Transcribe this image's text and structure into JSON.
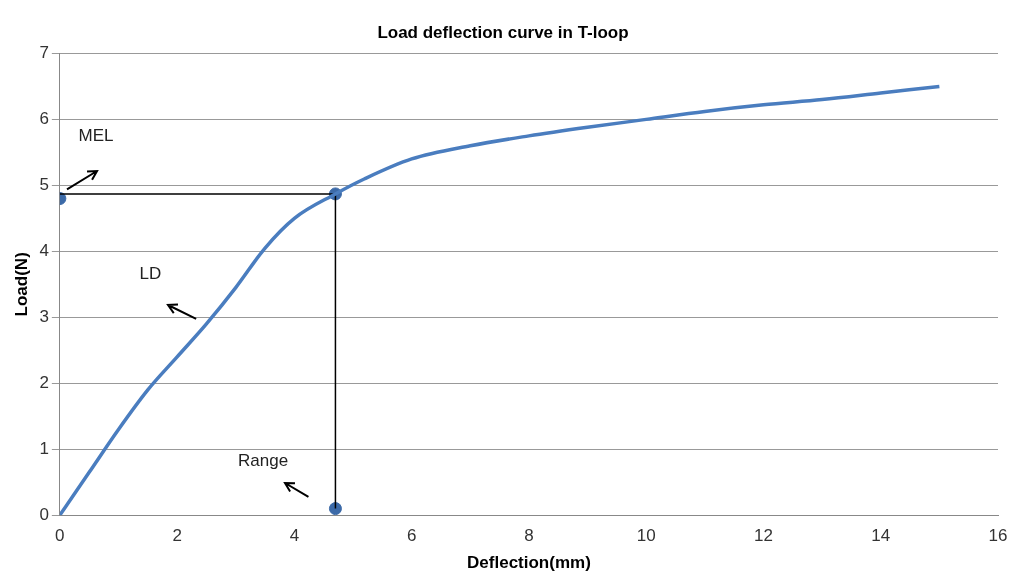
{
  "chart_data": {
    "type": "line",
    "title": "Load deflection curve in T-loop",
    "xlabel": "Deflection(mm)",
    "ylabel": "Load(N)",
    "series": [
      {
        "type": "line",
        "color": "#4a7dbf",
        "x": [
          0,
          0.5,
          1,
          1.5,
          2,
          2.5,
          3,
          3.5,
          4,
          4.7,
          5.2,
          6,
          7,
          8,
          9,
          10,
          11,
          12,
          13,
          14,
          15
        ],
        "values": [
          0,
          0.65,
          1.3,
          1.9,
          2.4,
          2.9,
          3.45,
          4.05,
          4.5,
          4.87,
          5.1,
          5.4,
          5.6,
          5.75,
          5.88,
          6.0,
          6.12,
          6.22,
          6.3,
          6.4,
          6.5
        ]
      },
      {
        "type": "line",
        "color": "#000000",
        "x": [
          0,
          4.7,
          4.7
        ],
        "values": [
          4.87,
          4.87,
          0.1
        ]
      },
      {
        "type": "scatter",
        "color": "#3c6aa8",
        "x": [
          0,
          4.7,
          4.7
        ],
        "values": [
          4.8,
          4.87,
          0.1
        ]
      }
    ],
    "xlim": [
      0,
      16
    ],
    "xticks": [
      0,
      2,
      4,
      6,
      8,
      10,
      12,
      14,
      16
    ],
    "ylim": [
      0,
      7
    ],
    "yticks": [
      0,
      1,
      2,
      3,
      4,
      5,
      6,
      7
    ],
    "grid": "y",
    "legend": false,
    "annotations": [
      "MEL",
      "LD",
      "Range"
    ]
  }
}
